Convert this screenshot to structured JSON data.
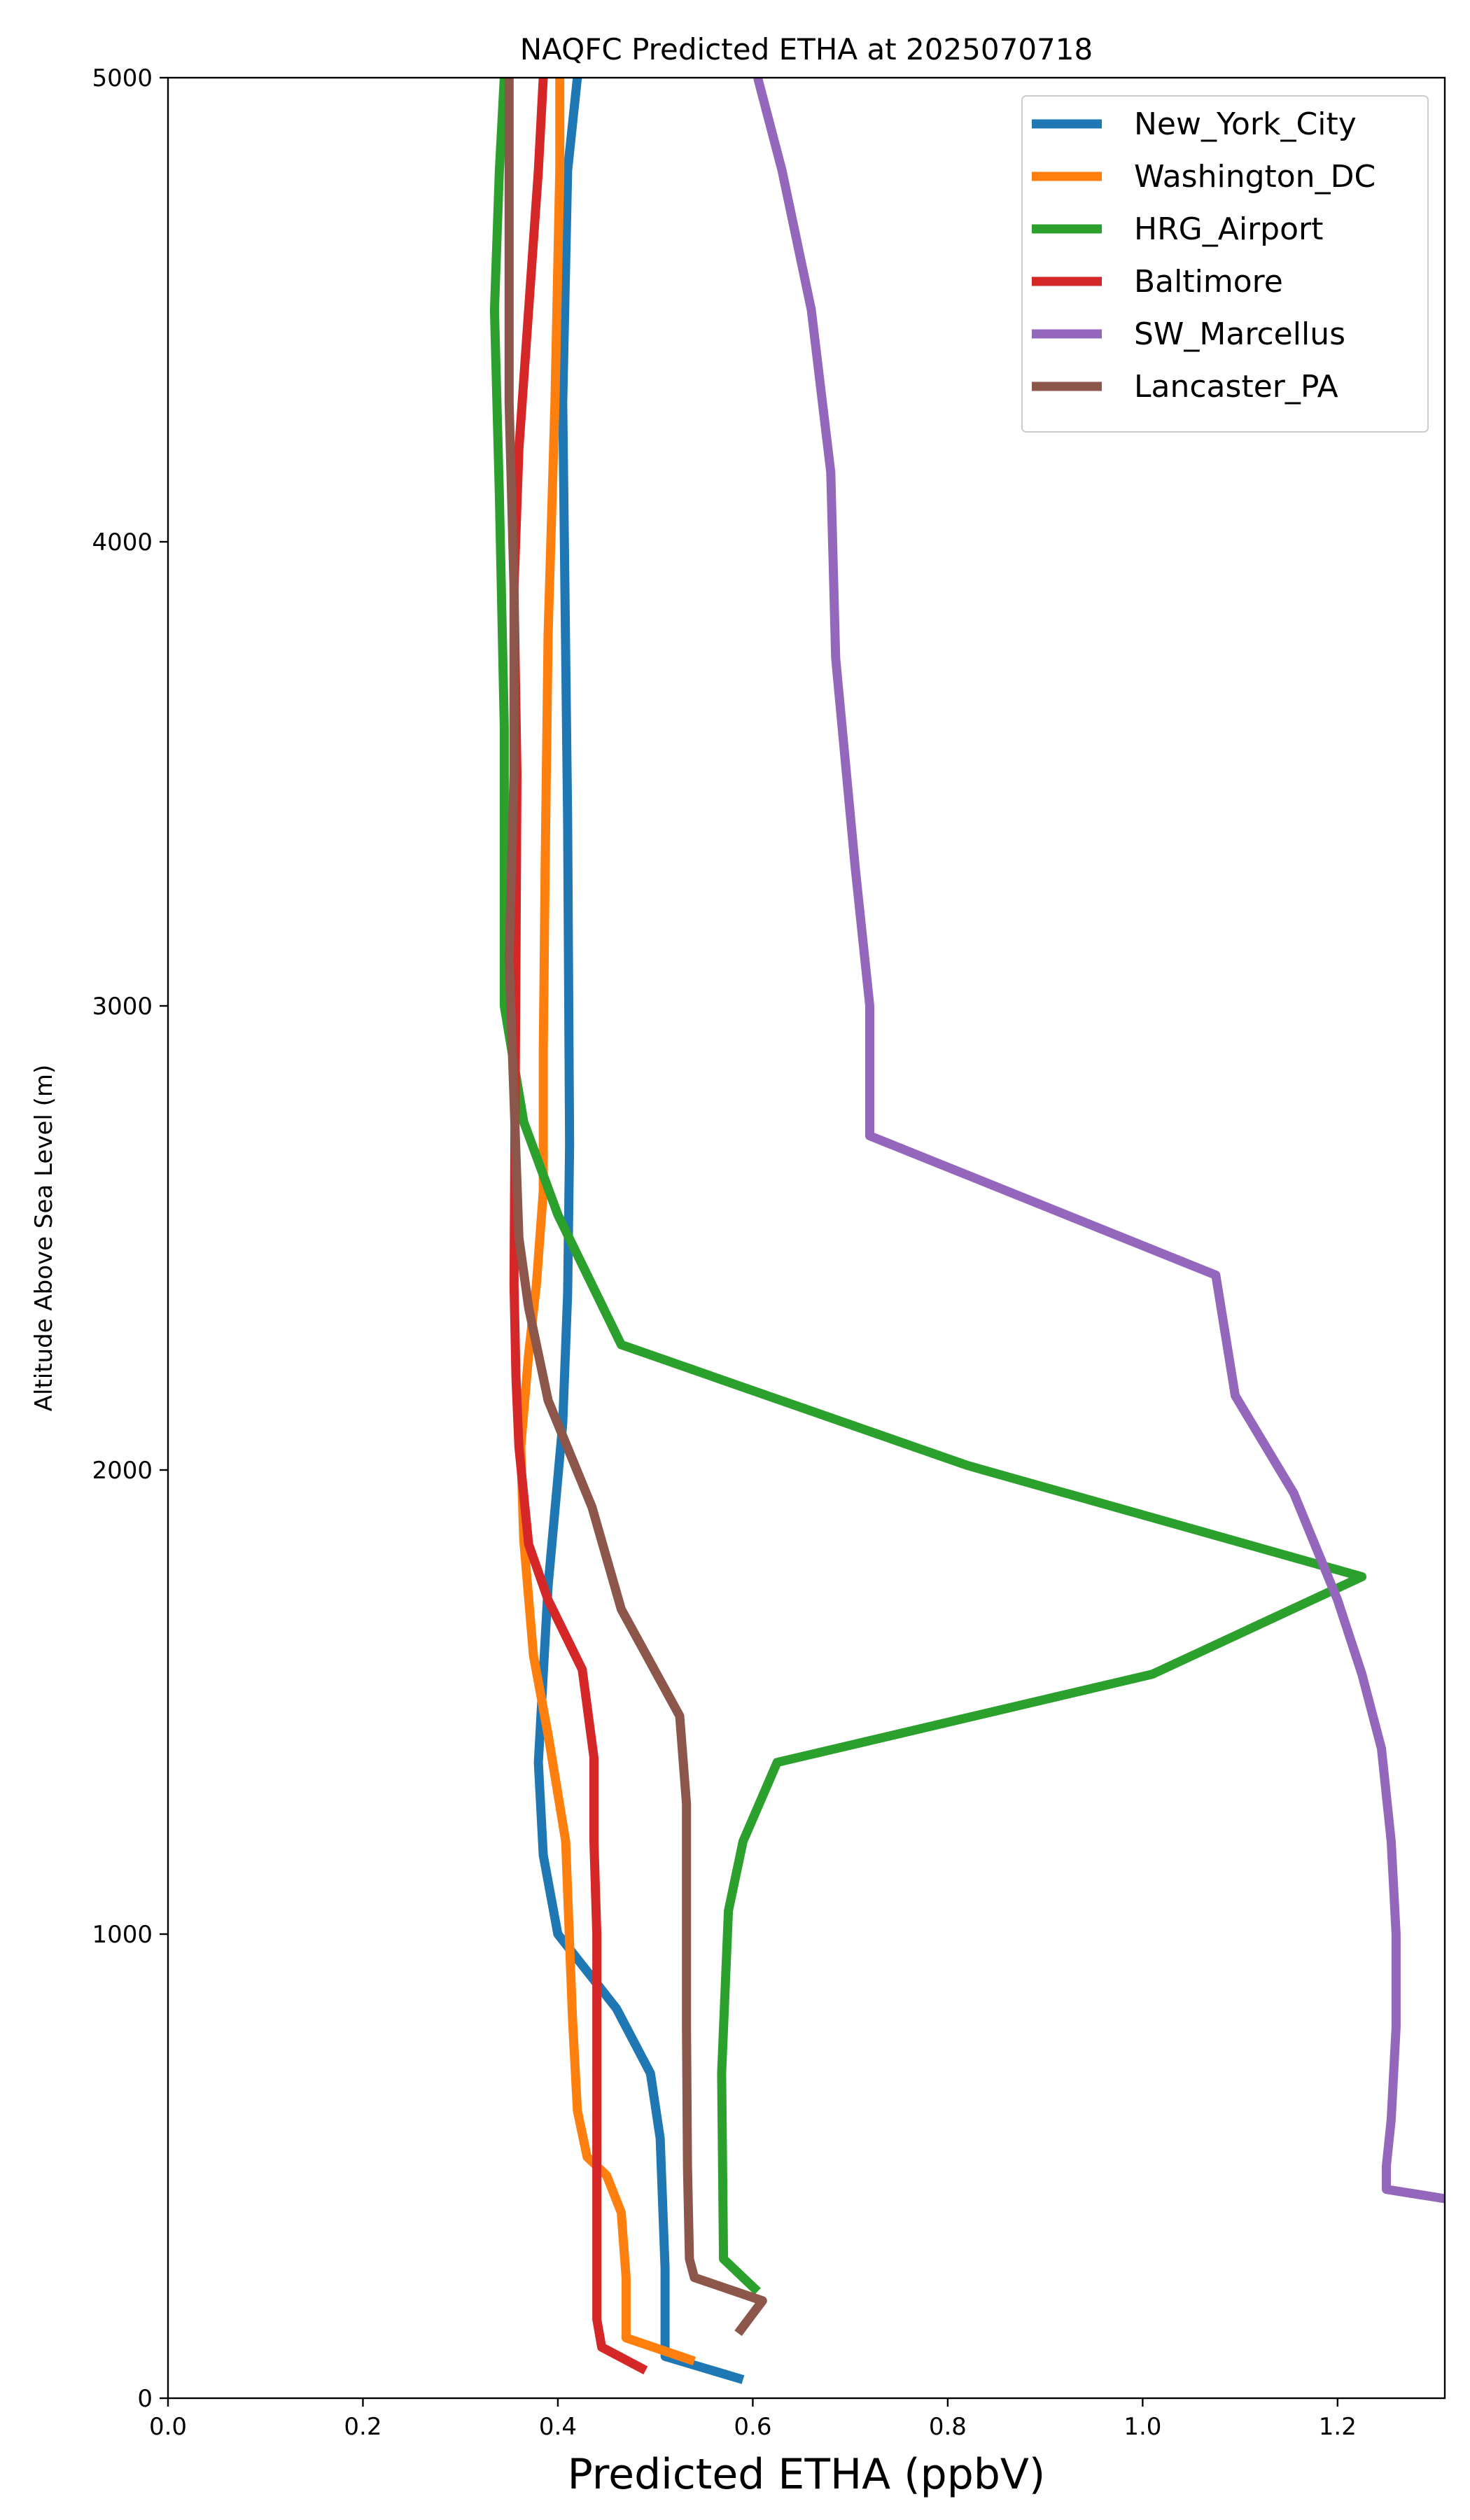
{
  "chart_data": {
    "type": "line",
    "title": "NAQFC Predicted ETHA at 2025070718",
    "xlabel": "Predicted ETHA (ppbV)",
    "ylabel": "Altitude Above Sea Level (m)",
    "xlim": [
      0.0,
      1.31
    ],
    "ylim": [
      0,
      5000
    ],
    "x_ticks": [
      "0.0",
      "0.2",
      "0.4",
      "0.6",
      "0.8",
      "1.0",
      "1.2"
    ],
    "y_ticks": [
      "0",
      "1000",
      "2000",
      "3000",
      "4000",
      "5000"
    ],
    "grid": false,
    "legend_position": "top-right",
    "series": [
      {
        "name": "New_York_City",
        "color": "#1f77b4",
        "points": [
          [
            0.59,
            40
          ],
          [
            0.51,
            90
          ],
          [
            0.51,
            280
          ],
          [
            0.505,
            560
          ],
          [
            0.495,
            700
          ],
          [
            0.46,
            840
          ],
          [
            0.4,
            1000
          ],
          [
            0.385,
            1170
          ],
          [
            0.38,
            1370
          ],
          [
            0.39,
            1750
          ],
          [
            0.405,
            2100
          ],
          [
            0.41,
            2380
          ],
          [
            0.412,
            2700
          ],
          [
            0.41,
            3400
          ],
          [
            0.405,
            4300
          ],
          [
            0.41,
            4800
          ],
          [
            0.42,
            5000
          ]
        ]
      },
      {
        "name": "Washington_DC",
        "color": "#ff7f0e",
        "points": [
          [
            0.54,
            80
          ],
          [
            0.47,
            130
          ],
          [
            0.47,
            260
          ],
          [
            0.465,
            400
          ],
          [
            0.45,
            480
          ],
          [
            0.43,
            520
          ],
          [
            0.42,
            620
          ],
          [
            0.415,
            820
          ],
          [
            0.408,
            1200
          ],
          [
            0.39,
            1430
          ],
          [
            0.375,
            1600
          ],
          [
            0.365,
            1850
          ],
          [
            0.362,
            2050
          ],
          [
            0.37,
            2250
          ],
          [
            0.378,
            2400
          ],
          [
            0.385,
            2600
          ],
          [
            0.385,
            2900
          ],
          [
            0.387,
            3300
          ],
          [
            0.39,
            3800
          ],
          [
            0.397,
            4300
          ],
          [
            0.402,
            4800
          ],
          [
            0.402,
            5000
          ]
        ]
      },
      {
        "name": "HRG_Airport",
        "color": "#2ca02c",
        "points": [
          [
            0.605,
            230
          ],
          [
            0.57,
            300
          ],
          [
            0.568,
            700
          ],
          [
            0.575,
            1050
          ],
          [
            0.59,
            1200
          ],
          [
            0.625,
            1370
          ],
          [
            1.01,
            1560
          ],
          [
            1.225,
            1770
          ],
          [
            0.82,
            2010
          ],
          [
            0.465,
            2270
          ],
          [
            0.4,
            2550
          ],
          [
            0.365,
            2750
          ],
          [
            0.345,
            3000
          ],
          [
            0.345,
            3600
          ],
          [
            0.34,
            4100
          ],
          [
            0.335,
            4500
          ],
          [
            0.34,
            4800
          ],
          [
            0.345,
            5000
          ]
        ]
      },
      {
        "name": "Baltimore",
        "color": "#d62728",
        "points": [
          [
            0.49,
            60
          ],
          [
            0.445,
            110
          ],
          [
            0.44,
            170
          ],
          [
            0.44,
            400
          ],
          [
            0.44,
            800
          ],
          [
            0.44,
            1000
          ],
          [
            0.437,
            1200
          ],
          [
            0.437,
            1380
          ],
          [
            0.425,
            1570
          ],
          [
            0.39,
            1720
          ],
          [
            0.37,
            1840
          ],
          [
            0.36,
            2050
          ],
          [
            0.357,
            2200
          ],
          [
            0.355,
            2400
          ],
          [
            0.356,
            2750
          ],
          [
            0.357,
            3100
          ],
          [
            0.358,
            3500
          ],
          [
            0.355,
            3900
          ],
          [
            0.36,
            4200
          ],
          [
            0.37,
            4500
          ],
          [
            0.38,
            4800
          ],
          [
            0.385,
            5000
          ]
        ]
      },
      {
        "name": "SW_Marcellus",
        "color": "#9467bd",
        "points": [
          [
            1.31,
            430
          ],
          [
            1.25,
            450
          ],
          [
            1.25,
            500
          ],
          [
            1.255,
            600
          ],
          [
            1.26,
            800
          ],
          [
            1.26,
            1000
          ],
          [
            1.255,
            1200
          ],
          [
            1.245,
            1400
          ],
          [
            1.225,
            1560
          ],
          [
            1.2,
            1720
          ],
          [
            1.155,
            1950
          ],
          [
            1.095,
            2160
          ],
          [
            1.075,
            2420
          ],
          [
            0.72,
            2720
          ],
          [
            0.72,
            3000
          ],
          [
            0.705,
            3300
          ],
          [
            0.685,
            3750
          ],
          [
            0.68,
            4150
          ],
          [
            0.66,
            4500
          ],
          [
            0.63,
            4800
          ],
          [
            0.605,
            5000
          ]
        ]
      },
      {
        "name": "Lancaster_PA",
        "color": "#8c564b",
        "points": [
          [
            0.585,
            140
          ],
          [
            0.61,
            210
          ],
          [
            0.54,
            260
          ],
          [
            0.535,
            300
          ],
          [
            0.533,
            500
          ],
          [
            0.532,
            800
          ],
          [
            0.532,
            1100
          ],
          [
            0.532,
            1280
          ],
          [
            0.525,
            1470
          ],
          [
            0.465,
            1700
          ],
          [
            0.435,
            1920
          ],
          [
            0.39,
            2150
          ],
          [
            0.37,
            2350
          ],
          [
            0.36,
            2500
          ],
          [
            0.355,
            2800
          ],
          [
            0.35,
            3100
          ],
          [
            0.355,
            3500
          ],
          [
            0.355,
            3900
          ],
          [
            0.35,
            4300
          ],
          [
            0.35,
            4700
          ],
          [
            0.35,
            5000
          ]
        ]
      }
    ]
  }
}
